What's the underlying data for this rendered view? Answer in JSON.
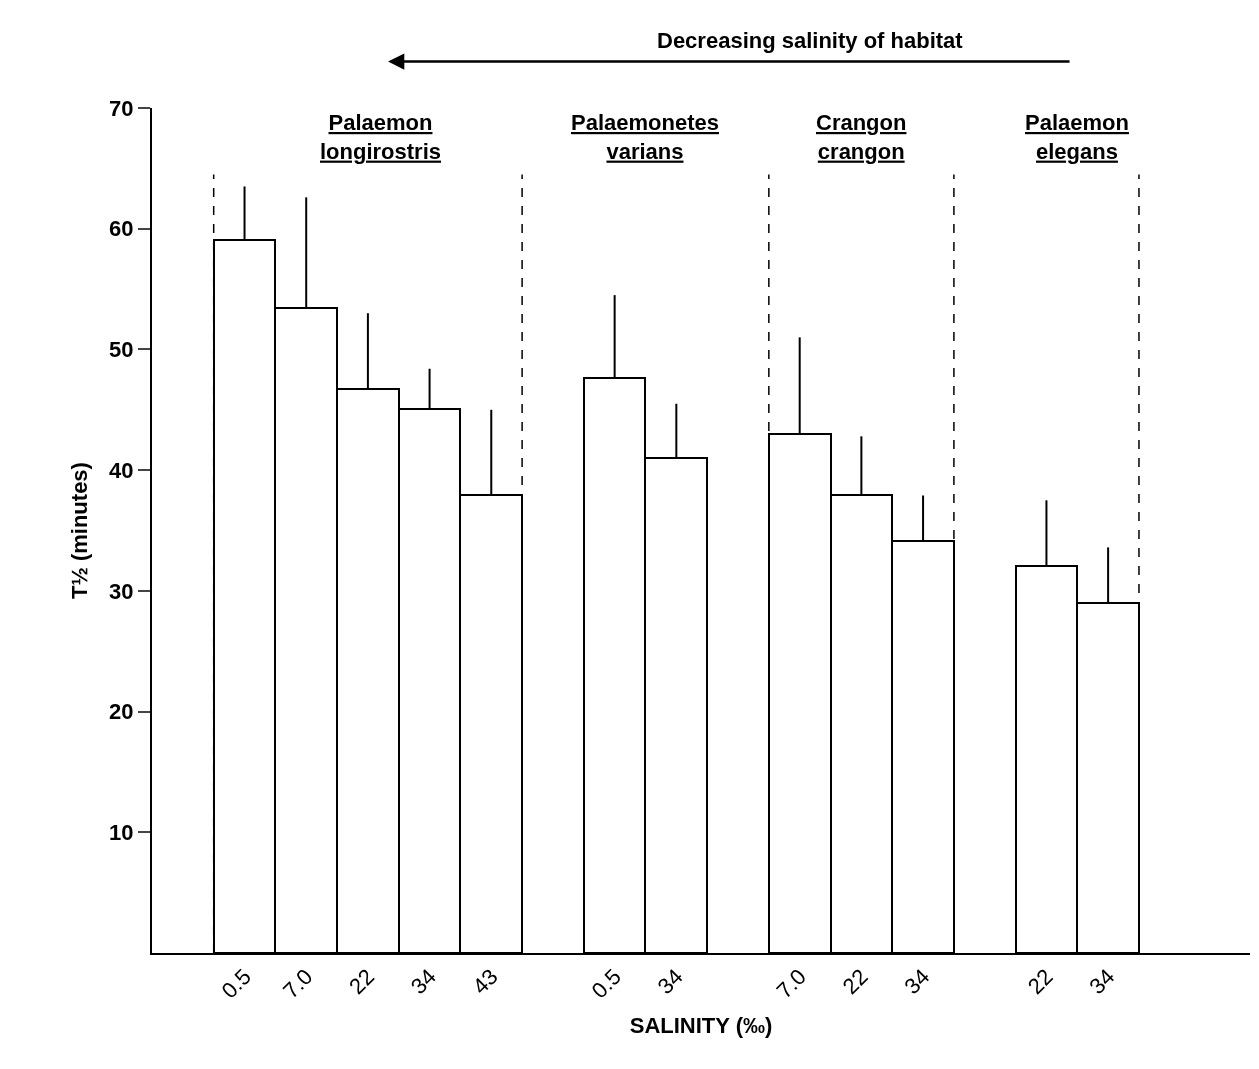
{
  "chart_data": {
    "type": "bar",
    "categories": [
      "0.5",
      "7.0",
      "22",
      "34",
      "43",
      null,
      "0.5",
      "34",
      null,
      "7.0",
      "22",
      "34",
      null,
      "22",
      "34"
    ],
    "values": [
      59.1,
      53.4,
      46.7,
      45.1,
      37.9,
      null,
      47.6,
      41.0,
      null,
      43.0,
      37.9,
      34.1,
      null,
      32.1,
      29.0
    ],
    "errors": [
      [
        59.1,
        63.5
      ],
      [
        53.4,
        62.6
      ],
      [
        46.7,
        53.0
      ],
      [
        45.1,
        48.4
      ],
      [
        37.9,
        45.0
      ],
      null,
      [
        47.6,
        54.5
      ],
      [
        41.0,
        45.5
      ],
      null,
      [
        43.0,
        51.0
      ],
      [
        37.9,
        42.8
      ],
      [
        34.1,
        37.9
      ],
      null,
      [
        32.1,
        37.5
      ],
      [
        29.0,
        33.6
      ]
    ],
    "color": "#ffffff",
    "ylim": [
      0,
      70
    ],
    "yticks": [
      10,
      20,
      30,
      40,
      50,
      60,
      70
    ],
    "xlabel": "SALINITY (‰)",
    "ylabel": "T½ (minutes)",
    "annotations": [
      "Decreasing salinity of habitat",
      "Palaemon longirostris",
      "Palaemonetes varians",
      "Crangon crangon",
      "Palaemon elegans"
    ],
    "grid": false
  }
}
